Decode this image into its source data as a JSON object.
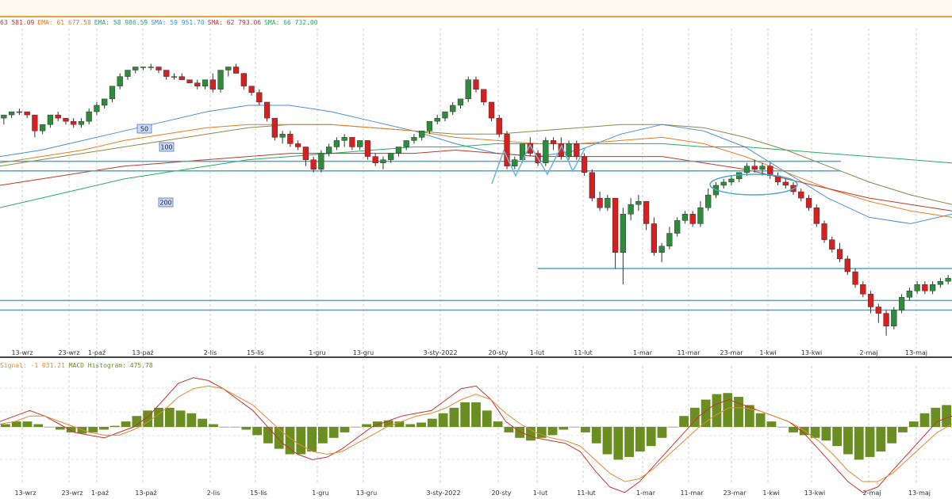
{
  "indicators": {
    "items": [
      {
        "text": "63 581.09",
        "color": "#c0392b"
      },
      {
        "text": "EMA: 61 677.58",
        "color": "#e67e22"
      },
      {
        "text": "EMA: 58 986.59",
        "color": "#27ae60"
      },
      {
        "text": "SMA: 59 951.70",
        "color": "#3498db"
      },
      {
        "text": "SMA: 62 793.06",
        "color": "#c0392b"
      },
      {
        "text": "SMA: 66 732.00",
        "color": "#27ae60"
      }
    ]
  },
  "macd_header": {
    "signal_text": "Signal: -1 031.21",
    "hist_text": "MACD Histogram: 475.78"
  },
  "ma_badges": [
    "50",
    "100",
    "200"
  ],
  "chart_data": [
    {
      "type": "candlestick",
      "title": "",
      "x_ticks": [
        "13-wrz",
        "23-wrz",
        "1-paź",
        "13-paź",
        "2-lis",
        "15-lis",
        "1-gru",
        "13-gru",
        "3-sty-2022",
        "20-sty",
        "1-lut",
        "11-lut",
        "1-mar",
        "11-mar",
        "23-mar",
        "1-kwi",
        "13-kwi",
        "2-maj",
        "13-maj"
      ],
      "ylim": [
        0,
        100
      ],
      "grid": true,
      "colors": {
        "up": "#2e8b3a",
        "down": "#d42020",
        "support": "#4aa8c8"
      },
      "support_levels": [
        58.5,
        55.5,
        25,
        15,
        12
      ],
      "series": [
        {
          "name": "50",
          "color": "#4a90d9",
          "values": [
            60,
            62,
            65,
            68,
            71,
            74,
            76,
            76,
            74,
            71,
            68,
            64,
            61,
            60,
            62,
            67,
            70,
            68,
            63,
            55,
            47,
            41,
            39,
            42
          ]
        },
        {
          "name": "100",
          "color": "#8a8a4a",
          "values": [
            57,
            59,
            61,
            63,
            65,
            67,
            69,
            70,
            70,
            69,
            68,
            67,
            67,
            68,
            69,
            70,
            70,
            69,
            66,
            62,
            57,
            52,
            48,
            45
          ]
        },
        {
          "name": "200",
          "color": "#27ae60",
          "values": [
            44,
            47,
            50,
            53,
            55,
            57,
            59,
            60,
            61,
            62,
            63,
            63,
            64,
            64,
            64,
            64,
            64,
            63,
            63,
            62,
            61,
            60,
            59,
            58
          ]
        },
        {
          "name": "",
          "color": "#e67e22",
          "values": [
            58,
            60,
            62,
            65,
            67,
            69,
            70,
            70,
            70,
            69,
            68,
            66,
            65,
            64,
            64,
            65,
            66,
            64,
            60,
            55,
            50,
            46,
            43,
            41
          ]
        },
        {
          "name": "",
          "color": "#c0392b",
          "values": [
            51,
            53,
            55,
            57,
            58,
            59,
            60,
            61,
            61,
            61,
            61,
            62,
            61,
            60,
            60,
            60,
            60,
            58,
            56,
            53,
            50,
            47,
            45,
            43
          ]
        }
      ],
      "candles": [
        [
          72,
          73,
          70,
          73
        ],
        [
          73,
          74,
          72,
          74
        ],
        [
          74,
          75,
          73,
          74
        ],
        [
          74,
          74,
          72,
          73
        ],
        [
          73,
          73,
          66,
          68
        ],
        [
          68,
          70,
          67,
          70
        ],
        [
          70,
          73,
          69,
          73
        ],
        [
          73,
          74,
          71,
          72
        ],
        [
          72,
          72,
          70,
          71
        ],
        [
          71,
          72,
          69,
          70
        ],
        [
          70,
          72,
          69,
          71
        ],
        [
          71,
          75,
          70,
          74
        ],
        [
          74,
          77,
          73,
          76
        ],
        [
          76,
          78,
          75,
          78
        ],
        [
          78,
          82,
          77,
          82
        ],
        [
          82,
          86,
          81,
          85
        ],
        [
          85,
          87,
          84,
          87
        ],
        [
          87,
          88,
          86,
          88
        ],
        [
          88,
          88,
          87,
          88
        ],
        [
          88,
          89,
          87,
          88
        ],
        [
          88,
          88,
          86,
          87
        ],
        [
          87,
          87,
          84,
          85
        ],
        [
          85,
          86,
          84,
          85
        ],
        [
          85,
          86,
          84,
          84
        ],
        [
          84,
          84,
          83,
          83
        ],
        [
          83,
          84,
          81,
          82
        ],
        [
          82,
          84,
          81,
          84
        ],
        [
          84,
          86,
          80,
          81
        ],
        [
          81,
          87,
          80,
          87
        ],
        [
          87,
          88,
          85,
          88
        ],
        [
          88,
          89,
          86,
          86
        ],
        [
          86,
          86,
          81,
          82
        ],
        [
          82,
          82,
          79,
          80
        ],
        [
          80,
          81,
          76,
          77
        ],
        [
          77,
          77,
          71,
          72
        ],
        [
          72,
          72,
          65,
          66
        ],
        [
          66,
          68,
          64,
          67
        ],
        [
          67,
          68,
          63,
          64
        ],
        [
          64,
          65,
          62,
          63
        ],
        [
          63,
          63,
          57,
          59
        ],
        [
          59,
          60,
          55,
          56
        ],
        [
          56,
          62,
          55,
          61
        ],
        [
          61,
          64,
          60,
          63
        ],
        [
          63,
          66,
          62,
          65
        ],
        [
          65,
          67,
          63,
          66
        ],
        [
          66,
          66,
          62,
          63
        ],
        [
          63,
          65,
          62,
          65
        ],
        [
          65,
          65,
          59,
          60
        ],
        [
          60,
          61,
          57,
          58
        ],
        [
          58,
          60,
          56,
          59
        ],
        [
          59,
          61,
          58,
          61
        ],
        [
          61,
          63,
          60,
          63
        ],
        [
          63,
          65,
          62,
          65
        ],
        [
          65,
          67,
          64,
          66
        ],
        [
          66,
          68,
          65,
          68
        ],
        [
          68,
          71,
          67,
          71
        ],
        [
          71,
          73,
          70,
          72
        ],
        [
          72,
          74,
          71,
          74
        ],
        [
          74,
          77,
          73,
          76
        ],
        [
          76,
          78,
          75,
          78
        ],
        [
          78,
          85,
          77,
          84
        ],
        [
          84,
          85,
          80,
          81
        ],
        [
          81,
          81,
          76,
          77
        ],
        [
          77,
          77,
          71,
          72
        ],
        [
          72,
          73,
          66,
          67
        ],
        [
          67,
          68,
          56,
          57
        ],
        [
          57,
          60,
          56,
          59
        ],
        [
          59,
          64,
          58,
          64
        ],
        [
          64,
          66,
          60,
          61
        ],
        [
          61,
          62,
          57,
          58
        ],
        [
          58,
          66,
          57,
          65
        ],
        [
          65,
          66,
          62,
          64
        ],
        [
          64,
          66,
          59,
          60
        ],
        [
          60,
          65,
          59,
          64
        ],
        [
          64,
          65,
          59,
          60
        ],
        [
          60,
          61,
          54,
          55
        ],
        [
          55,
          56,
          46,
          47
        ],
        [
          47,
          49,
          43,
          44
        ],
        [
          44,
          48,
          43,
          47
        ],
        [
          47,
          47,
          25,
          30
        ],
        [
          30,
          44,
          20,
          42
        ],
        [
          42,
          47,
          40,
          45
        ],
        [
          45,
          48,
          43,
          46
        ],
        [
          46,
          46,
          37,
          39
        ],
        [
          39,
          41,
          29,
          30
        ],
        [
          30,
          33,
          27,
          32
        ],
        [
          32,
          38,
          31,
          36
        ],
        [
          36,
          41,
          35,
          40
        ],
        [
          40,
          43,
          39,
          42
        ],
        [
          42,
          43,
          38,
          39
        ],
        [
          39,
          46,
          38,
          44
        ],
        [
          44,
          50,
          43,
          48
        ],
        [
          48,
          52,
          47,
          51
        ],
        [
          51,
          53,
          50,
          52
        ],
        [
          52,
          54,
          51,
          53
        ],
        [
          53,
          55,
          52,
          55
        ],
        [
          55,
          58,
          54,
          57
        ],
        [
          57,
          59,
          55,
          56
        ],
        [
          56,
          58,
          54,
          57
        ],
        [
          57,
          58,
          53,
          54
        ],
        [
          54,
          55,
          51,
          52
        ],
        [
          52,
          53,
          50,
          51
        ],
        [
          51,
          52,
          48,
          49
        ],
        [
          49,
          50,
          46,
          47
        ],
        [
          47,
          48,
          43,
          44
        ],
        [
          44,
          45,
          38,
          39
        ],
        [
          39,
          40,
          33,
          34
        ],
        [
          34,
          35,
          30,
          31
        ],
        [
          31,
          33,
          27,
          28
        ],
        [
          28,
          29,
          23,
          24
        ],
        [
          24,
          25,
          19,
          20
        ],
        [
          20,
          21,
          16,
          17
        ],
        [
          17,
          18,
          11,
          13
        ],
        [
          13,
          14,
          8,
          11
        ],
        [
          11,
          12,
          4,
          7
        ],
        [
          7,
          13,
          6,
          12
        ],
        [
          12,
          17,
          11,
          16
        ],
        [
          16,
          19,
          15,
          18
        ],
        [
          18,
          21,
          17,
          20
        ],
        [
          20,
          21,
          17,
          18
        ],
        [
          18,
          21,
          17,
          20
        ],
        [
          20,
          22,
          19,
          21
        ],
        [
          21,
          23,
          20,
          22
        ]
      ]
    },
    {
      "type": "bar",
      "title": "",
      "ylim": [
        -1,
        1
      ],
      "colors": {
        "hist": "#6b8e23",
        "macd": "#cc3333",
        "signal": "#e08a30"
      },
      "histogram": [
        0.05,
        0.1,
        0.1,
        0.05,
        0,
        -0.05,
        -0.1,
        -0.12,
        -0.1,
        -0.05,
        0.02,
        0.1,
        0.2,
        0.3,
        0.35,
        0.35,
        0.3,
        0.25,
        0.15,
        0.05,
        0,
        0,
        -0.05,
        -0.15,
        -0.3,
        -0.4,
        -0.5,
        -0.5,
        -0.45,
        -0.3,
        -0.2,
        -0.1,
        0,
        0.05,
        0.1,
        0.12,
        0.1,
        0.05,
        0.08,
        0.15,
        0.25,
        0.35,
        0.45,
        0.45,
        0.3,
        0.1,
        -0.1,
        -0.2,
        -0.25,
        -0.2,
        -0.15,
        -0.05,
        0,
        -0.1,
        -0.3,
        -0.5,
        -0.6,
        -0.55,
        -0.45,
        -0.35,
        -0.2,
        0,
        0.2,
        0.35,
        0.5,
        0.6,
        0.62,
        0.55,
        0.4,
        0.25,
        0.1,
        0,
        -0.1,
        -0.15,
        -0.2,
        -0.25,
        -0.35,
        -0.5,
        -0.6,
        -0.55,
        -0.45,
        -0.3,
        -0.1,
        0.1,
        0.25,
        0.35,
        0.4
      ],
      "macd_line": [
        0.1,
        0.2,
        0.3,
        0.2,
        0.05,
        -0.1,
        -0.15,
        -0.2,
        -0.1,
        0,
        0.2,
        0.5,
        0.8,
        0.9,
        0.85,
        0.7,
        0.5,
        0.3,
        0,
        -0.3,
        -0.5,
        -0.6,
        -0.55,
        -0.4,
        -0.2,
        0,
        0.1,
        0.2,
        0.25,
        0.3,
        0.5,
        0.7,
        0.75,
        0.5,
        0.1,
        -0.1,
        -0.2,
        -0.25,
        -0.3,
        -0.45,
        -0.8,
        -1.1,
        -1.2,
        -1.0,
        -0.7,
        -0.4,
        -0.1,
        0.2,
        0.4,
        0.5,
        0.4,
        0.3,
        0.2,
        0.1,
        -0.1,
        -0.4,
        -0.7,
        -1.0,
        -1.2,
        -1.1,
        -0.8,
        -0.5,
        -0.2,
        0.1,
        0.2
      ],
      "signal_line": [
        0.05,
        0.1,
        0.2,
        0.2,
        0.1,
        0,
        -0.1,
        -0.15,
        -0.15,
        -0.05,
        0.1,
        0.3,
        0.55,
        0.7,
        0.75,
        0.7,
        0.55,
        0.4,
        0.15,
        -0.1,
        -0.3,
        -0.45,
        -0.5,
        -0.45,
        -0.3,
        -0.15,
        0,
        0.1,
        0.2,
        0.25,
        0.35,
        0.5,
        0.6,
        0.5,
        0.25,
        0.05,
        -0.1,
        -0.2,
        -0.25,
        -0.35,
        -0.6,
        -0.85,
        -1.0,
        -0.95,
        -0.75,
        -0.5,
        -0.25,
        0,
        0.2,
        0.35,
        0.35,
        0.3,
        0.2,
        0.1,
        -0.05,
        -0.25,
        -0.5,
        -0.8,
        -1.0,
        -1.0,
        -0.85,
        -0.6,
        -0.35,
        -0.1,
        0.05
      ],
      "x_ticks": [
        "13-wrz",
        "23-wrz",
        "1-paź",
        "13-paź",
        "2-lis",
        "15-lis",
        "1-gru",
        "13-gru",
        "3-sty-2022",
        "20-sty",
        "1-lut",
        "11-lut",
        "1-mar",
        "11-mar",
        "23-mar",
        "1-kwi",
        "13-kwi",
        "2-maj",
        "13-maj"
      ]
    }
  ]
}
